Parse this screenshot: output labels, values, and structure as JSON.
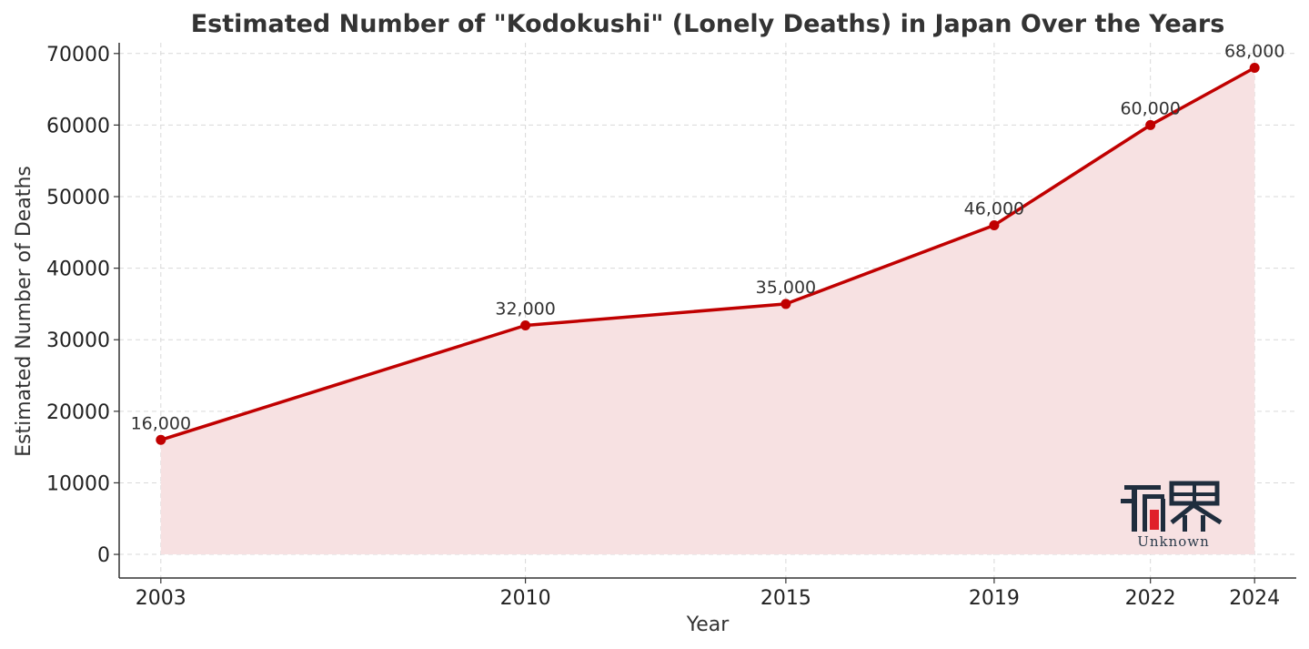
{
  "chart_data": {
    "type": "line",
    "title": "Estimated Number of \"Kodokushi\" (Lonely Deaths) in Japan Over the Years",
    "xlabel": "Year",
    "ylabel": "Estimated Number of Deaths",
    "x": [
      2003,
      2010,
      2015,
      2019,
      2022,
      2024
    ],
    "x_tick_labels": [
      "2003",
      "2010",
      "2015",
      "2019",
      "2022",
      "2024"
    ],
    "series": [
      {
        "values": [
          16000,
          32000,
          35000,
          46000,
          60000,
          68000
        ]
      }
    ],
    "data_labels": [
      "16,000",
      "32,000",
      "35,000",
      "46,000",
      "60,000",
      "68,000"
    ],
    "y_ticks": [
      0,
      10000,
      20000,
      30000,
      40000,
      50000,
      60000,
      70000
    ],
    "y_tick_labels": [
      "0",
      "10000",
      "20000",
      "30000",
      "40000",
      "50000",
      "60000",
      "70000"
    ],
    "xlim": [
      2002.2,
      2024.8
    ],
    "ylim": [
      -3300,
      71500
    ],
    "grid": true,
    "fill_under_line": true,
    "colors": {
      "line": "#c00000",
      "fill": "#f7e1e2",
      "grid": "#d9d9d9",
      "axis": "#333333"
    }
  },
  "watermark": {
    "text": "Unknown",
    "icon": "logo-glyph-icon"
  }
}
